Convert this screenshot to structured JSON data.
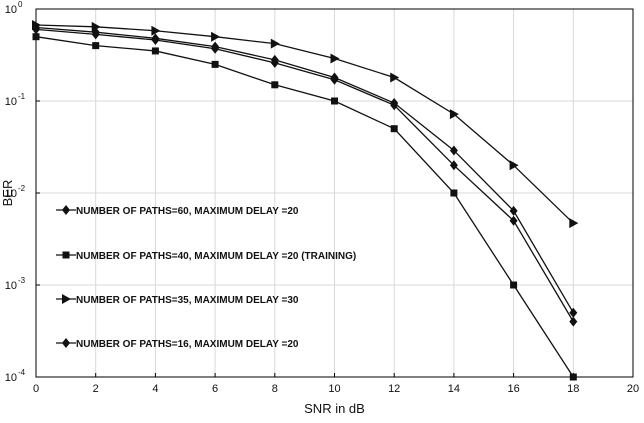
{
  "chart_data": {
    "type": "line",
    "title": "",
    "xlabel": "SNR in dB",
    "ylabel": "BER",
    "xlim": [
      0,
      20
    ],
    "ylim": [
      0.0001,
      1
    ],
    "yscale": "log",
    "grid": true,
    "legend_position": "lower-left",
    "x_ticks": [
      0,
      2,
      4,
      6,
      8,
      10,
      12,
      14,
      16,
      18,
      20
    ],
    "y_ticks": [
      {
        "base": "10",
        "exp": "0",
        "value": 1
      },
      {
        "base": "10",
        "exp": "-1",
        "value": 0.1
      },
      {
        "base": "10",
        "exp": "-2",
        "value": 0.01
      },
      {
        "base": "10",
        "exp": "-3",
        "value": 0.001
      },
      {
        "base": "10",
        "exp": "-4",
        "value": 0.0001
      }
    ],
    "x": [
      0,
      2,
      4,
      6,
      8,
      10,
      12,
      14,
      16,
      18
    ],
    "series": [
      {
        "name": "NUMBER OF PATHS=60, MAXIMUM DELAY =20",
        "marker": "diamond",
        "values": [
          0.6,
          0.53,
          0.46,
          0.37,
          0.26,
          0.17,
          0.09,
          0.02,
          0.005,
          0.0004
        ]
      },
      {
        "name": "NUMBER OF PATHS=40, MAXIMUM DELAY =20 (TRAINING)",
        "marker": "square",
        "values": [
          0.5,
          0.4,
          0.35,
          0.25,
          0.15,
          0.1,
          0.05,
          0.01,
          0.001,
          0.0001
        ]
      },
      {
        "name": "NUMBER OF PATHS=35, MAXIMUM DELAY =30",
        "marker": "triangle-right",
        "values": [
          0.67,
          0.64,
          0.58,
          0.5,
          0.42,
          0.29,
          0.18,
          0.072,
          0.02,
          0.0047
        ]
      },
      {
        "name": "NUMBER OF PATHS=16, MAXIMUM DELAY =20",
        "marker": "diamond",
        "values": [
          0.63,
          0.56,
          0.48,
          0.39,
          0.28,
          0.18,
          0.095,
          0.029,
          0.0064,
          0.0005
        ]
      }
    ],
    "colors": {
      "line": "#111111",
      "grid": "#d9d9d9",
      "axis": "#000000"
    }
  }
}
